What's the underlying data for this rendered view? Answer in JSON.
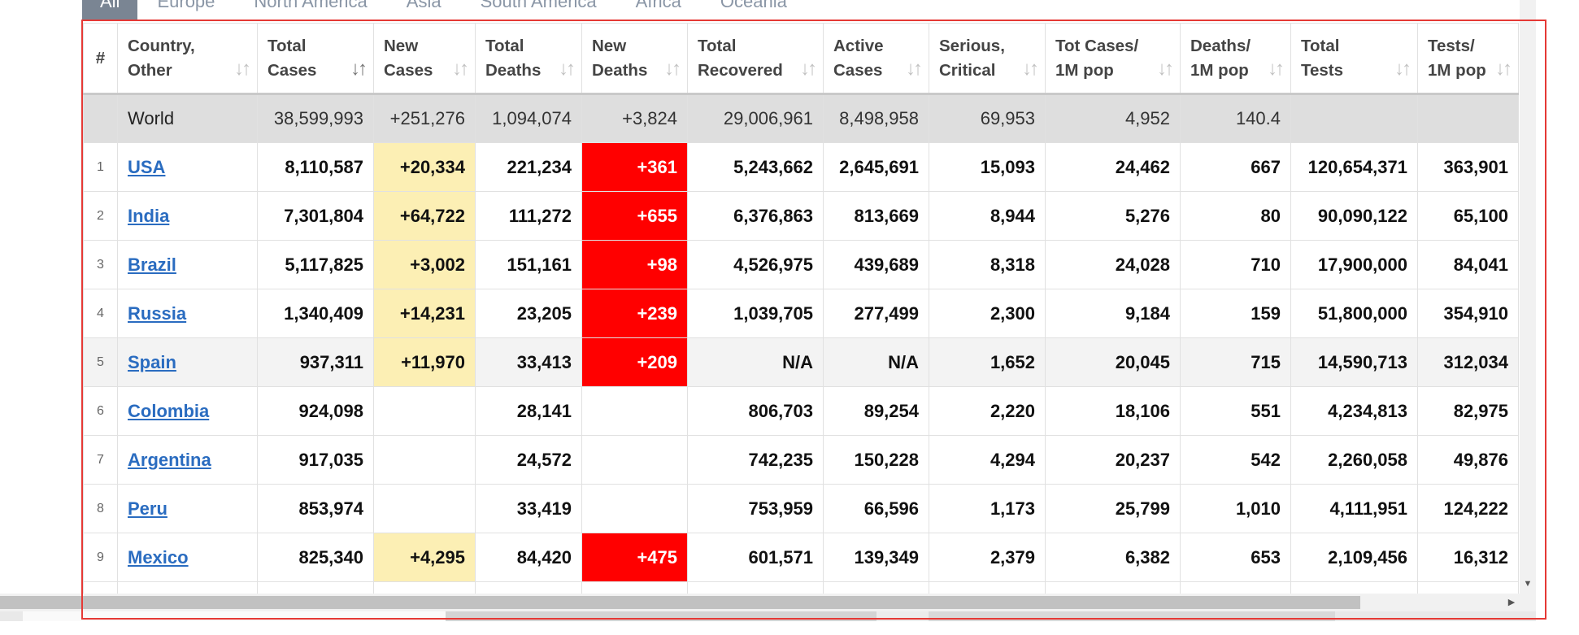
{
  "tabs": [
    "All",
    "Europe",
    "North America",
    "Asia",
    "South America",
    "Africa",
    "Oceania"
  ],
  "columns": [
    {
      "line1": "#",
      "line2": "",
      "sort": ""
    },
    {
      "line1": "Country,",
      "line2": "Other",
      "sort": "↓↑"
    },
    {
      "line1": "Total",
      "line2": "Cases",
      "sort": "↓↑",
      "active": true
    },
    {
      "line1": "New",
      "line2": "Cases",
      "sort": "↓↑"
    },
    {
      "line1": "Total",
      "line2": "Deaths",
      "sort": "↓↑"
    },
    {
      "line1": "New",
      "line2": "Deaths",
      "sort": "↓↑"
    },
    {
      "line1": "Total",
      "line2": "Recovered",
      "sort": "↓↑"
    },
    {
      "line1": "Active",
      "line2": "Cases",
      "sort": "↓↑"
    },
    {
      "line1": "Serious,",
      "line2": "Critical",
      "sort": "↓↑"
    },
    {
      "line1": "Tot Cases/",
      "line2": "1M pop",
      "sort": "↓↑"
    },
    {
      "line1": "Deaths/",
      "line2": "1M pop",
      "sort": "↓↑"
    },
    {
      "line1": "Total",
      "line2": "Tests",
      "sort": "↓↑"
    },
    {
      "line1": "Tests/",
      "line2": "1M pop",
      "sort": "↓↑"
    }
  ],
  "world": [
    "",
    "World",
    "38,599,993",
    "+251,276",
    "1,094,074",
    "+3,824",
    "29,006,961",
    "8,498,958",
    "69,953",
    "4,952",
    "140.4",
    "",
    ""
  ],
  "rows": [
    [
      "1",
      "USA",
      "8,110,587",
      "+20,334",
      "221,234",
      "+361",
      "5,243,662",
      "2,645,691",
      "15,093",
      "24,462",
      "667",
      "120,654,371",
      "363,901"
    ],
    [
      "2",
      "India",
      "7,301,804",
      "+64,722",
      "111,272",
      "+655",
      "6,376,863",
      "813,669",
      "8,944",
      "5,276",
      "80",
      "90,090,122",
      "65,100"
    ],
    [
      "3",
      "Brazil",
      "5,117,825",
      "+3,002",
      "151,161",
      "+98",
      "4,526,975",
      "439,689",
      "8,318",
      "24,028",
      "710",
      "17,900,000",
      "84,041"
    ],
    [
      "4",
      "Russia",
      "1,340,409",
      "+14,231",
      "23,205",
      "+239",
      "1,039,705",
      "277,499",
      "2,300",
      "9,184",
      "159",
      "51,800,000",
      "354,910"
    ],
    [
      "5",
      "Spain",
      "937,311",
      "+11,970",
      "33,413",
      "+209",
      "N/A",
      "N/A",
      "1,652",
      "20,045",
      "715",
      "14,590,713",
      "312,034"
    ],
    [
      "6",
      "Colombia",
      "924,098",
      "",
      "28,141",
      "",
      "806,703",
      "89,254",
      "2,220",
      "18,106",
      "551",
      "4,234,813",
      "82,975"
    ],
    [
      "7",
      "Argentina",
      "917,035",
      "",
      "24,572",
      "",
      "742,235",
      "150,228",
      "4,294",
      "20,237",
      "542",
      "2,260,058",
      "49,876"
    ],
    [
      "8",
      "Peru",
      "853,974",
      "",
      "33,419",
      "",
      "753,959",
      "66,596",
      "1,173",
      "25,799",
      "1,010",
      "4,111,951",
      "124,222"
    ],
    [
      "9",
      "Mexico",
      "825,340",
      "+4,295",
      "84,420",
      "+475",
      "601,571",
      "139,349",
      "2,379",
      "6,382",
      "653",
      "2,109,456",
      "16,312"
    ],
    [
      "",
      "",
      "",
      "",
      "",
      "",
      "",
      "",
      "",
      "",
      "",
      "",
      ""
    ]
  ],
  "colors": {
    "new_cases_highlight": "#fcefb4",
    "new_deaths_highlight": "#ff0000",
    "link": "#2a6cc0",
    "world_row": "#dedede",
    "frame": "#e53935"
  }
}
